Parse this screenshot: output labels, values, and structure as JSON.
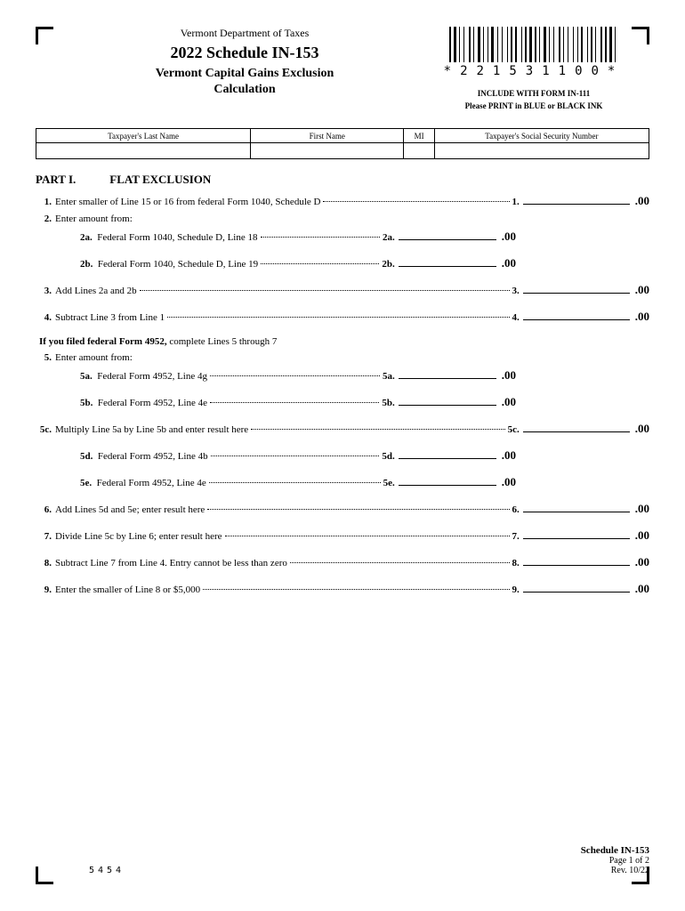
{
  "header": {
    "department": "Vermont Department of Taxes",
    "title": "2022 Schedule IN-153",
    "subtitle_line1": "Vermont Capital Gains Exclusion",
    "subtitle_line2": "Calculation",
    "barcode_text": "*221531100*",
    "include_text": "INCLUDE WITH FORM IN-111",
    "print_text": "Please PRINT in BLUE or BLACK INK"
  },
  "taxpayer_table": {
    "col_last": "Taxpayer's Last Name",
    "col_first": "First Name",
    "col_mi": "MI",
    "col_ssn": "Taxpayer's Social Security Number"
  },
  "part1": {
    "label": "PART I.",
    "title": "FLAT EXCLUSION"
  },
  "lines": {
    "l1_num": "1.",
    "l1_text": "Enter smaller of Line 15 or 16 from federal Form 1040, Schedule D",
    "l1_ref": "1.",
    "l2_num": "2.",
    "l2_text": "Enter amount from:",
    "l2a_text": "Federal Form 1040, Schedule D, Line 18",
    "l2a_label": "2a.",
    "l2a_ref": "2a.",
    "l2b_text": "Federal Form 1040, Schedule D, Line 19",
    "l2b_label": "2b.",
    "l2b_ref": "2b.",
    "l3_num": "3.",
    "l3_text": "Add Lines 2a and 2b",
    "l3_ref": "3.",
    "l4_num": "4.",
    "l4_text": "Subtract Line 3 from Line 1",
    "l4_ref": "4.",
    "intro_bold": "If you filed federal Form 4952,",
    "intro_rest": " complete Lines 5 through 7",
    "l5_num": "5.",
    "l5_text": "Enter amount from:",
    "l5a_text": "Federal Form 4952, Line 4g",
    "l5a_label": "5a.",
    "l5a_ref": "5a.",
    "l5b_text": "Federal Form 4952, Line 4e",
    "l5b_label": "5b.",
    "l5b_ref": "5b.",
    "l5c_num": "5c.",
    "l5c_text": "Multiply Line 5a by Line 5b and enter result here",
    "l5c_ref": "5c.",
    "l5d_text": "Federal Form 4952, Line 4b",
    "l5d_label": "5d.",
    "l5d_ref": "5d.",
    "l5e_text": "Federal Form 4952, Line 4e",
    "l5e_label": "5e.",
    "l5e_ref": "5e.",
    "l6_num": "6.",
    "l6_text": "Add Lines 5d and 5e; enter result here",
    "l6_ref": "6.",
    "l7_num": "7.",
    "l7_text": "Divide Line 5c by Line 6; enter result here",
    "l7_ref": "7.",
    "l8_num": "8.",
    "l8_text": "Subtract Line 7 from Line 4.  Entry cannot be less than zero",
    "l8_ref": "8.",
    "l9_num": "9.",
    "l9_text": "Enter the smaller of Line 8 or $5,000",
    "l9_ref": "9.",
    "cents": ".00"
  },
  "footer": {
    "code": "5454",
    "schedule": "Schedule IN-153",
    "page": "Page 1 of 2",
    "rev": "Rev. 10/22"
  },
  "barcode_widths": [
    2,
    1,
    3,
    1,
    1,
    2,
    1,
    3,
    2,
    1,
    1,
    2,
    3,
    1,
    1,
    2,
    1,
    1,
    3,
    2,
    1,
    2,
    1,
    3,
    1,
    1,
    2,
    1,
    2,
    3,
    1,
    1,
    2,
    1,
    3,
    1,
    2,
    1,
    1,
    2,
    3,
    1,
    1,
    2,
    1,
    3,
    2,
    1,
    1,
    2,
    1,
    3,
    1,
    2,
    1,
    1,
    2,
    3,
    1,
    1,
    2,
    1,
    1,
    3,
    2,
    1,
    2,
    1,
    3,
    1,
    1,
    2
  ]
}
